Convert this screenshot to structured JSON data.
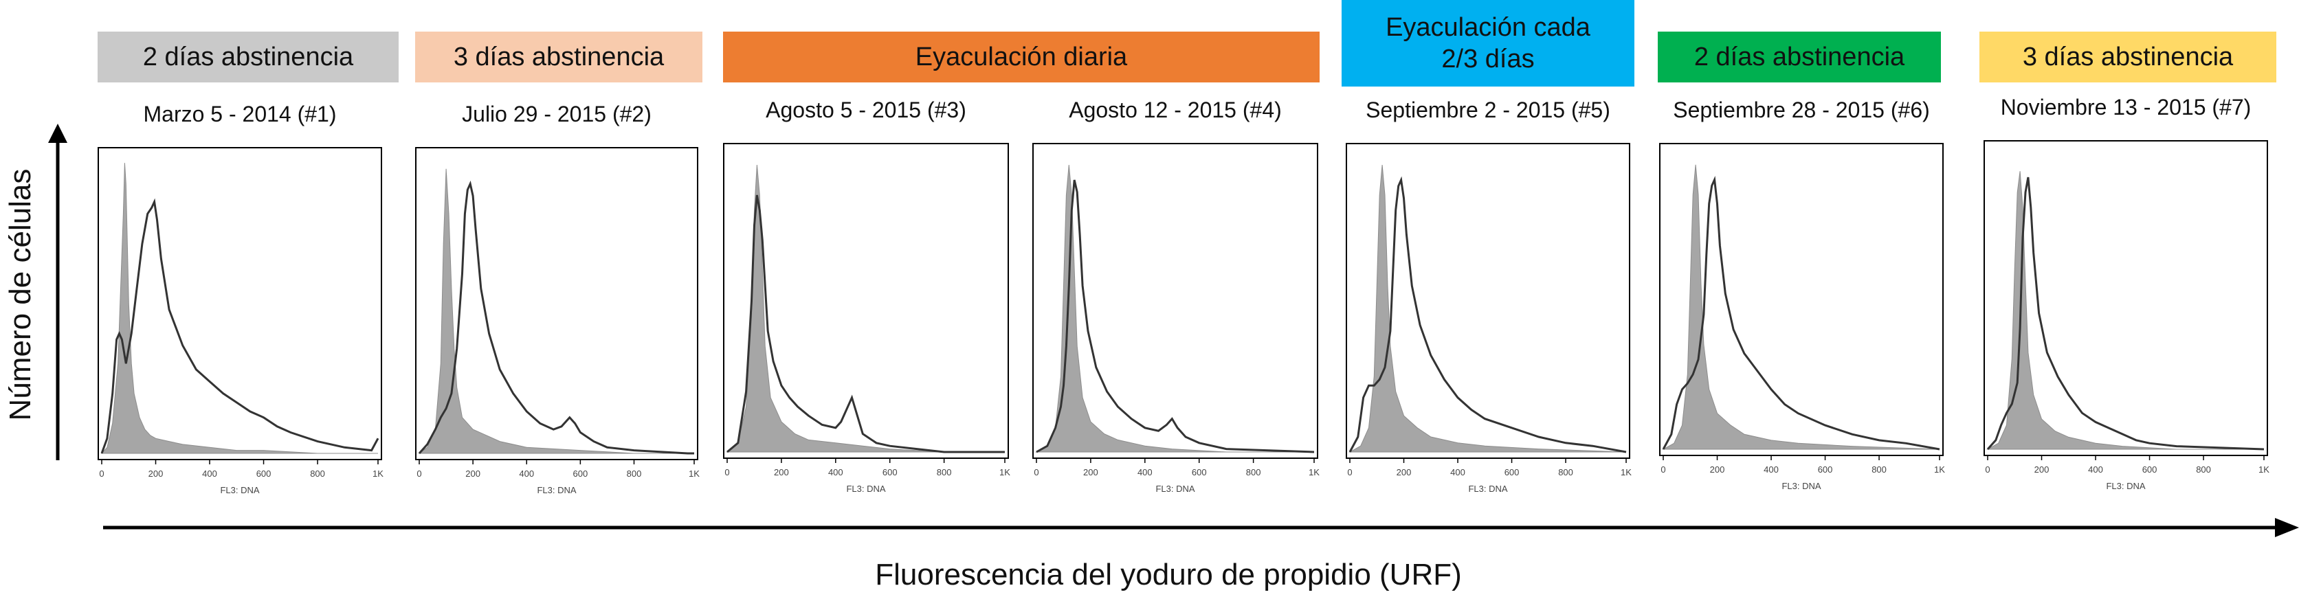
{
  "y_axis_label": "Número de células",
  "x_axis_label": "Fluorescencia del yoduro de propidio (URF)",
  "banners": [
    {
      "text": "2 días abstinencia",
      "color": "#c9c9c9"
    },
    {
      "text": "3 días abstinencia",
      "color": "#f8cbad"
    },
    {
      "text": "Eyaculación diaria",
      "color": "#ed7d31"
    },
    {
      "text": "Eyaculación cada\n2/3 días",
      "color": "#00b0f0"
    },
    {
      "text": "2 días abstinencia",
      "color": "#00b050"
    },
    {
      "text": "3 días abstinencia",
      "color": "#ffd966"
    }
  ],
  "chart_data": [
    {
      "type": "area",
      "title": "Marzo 5 - 2014 (#1)",
      "xlabel": "FL3: DNA",
      "xticks": [
        "0",
        "200",
        "400",
        "600",
        "800",
        "1K"
      ],
      "xlim": [
        0,
        1024
      ],
      "series": [
        {
          "style": "filled-gray",
          "x": [
            0,
            20,
            40,
            60,
            70,
            80,
            85,
            90,
            95,
            100,
            110,
            120,
            140,
            160,
            180,
            200,
            250,
            300,
            400,
            500,
            600,
            800,
            1000,
            1024
          ],
          "y": [
            0,
            2,
            10,
            30,
            55,
            80,
            97,
            90,
            70,
            50,
            30,
            20,
            12,
            8,
            6,
            5,
            4,
            3,
            2,
            1,
            1,
            0,
            0,
            0
          ]
        },
        {
          "style": "outline",
          "x": [
            0,
            20,
            40,
            55,
            65,
            75,
            90,
            110,
            130,
            150,
            170,
            185,
            195,
            205,
            220,
            250,
            300,
            350,
            400,
            450,
            500,
            550,
            600,
            650,
            700,
            800,
            900,
            1000,
            1024
          ],
          "y": [
            0,
            5,
            20,
            38,
            40,
            38,
            30,
            40,
            55,
            70,
            80,
            82,
            84,
            78,
            65,
            48,
            36,
            28,
            24,
            20,
            17,
            14,
            12,
            9,
            7,
            4,
            2,
            1,
            5
          ]
        }
      ]
    },
    {
      "type": "area",
      "title": "Julio 29 - 2015 (#2)",
      "xlabel": "FL3: DNA",
      "xticks": [
        "0",
        "200",
        "400",
        "600",
        "800",
        "1K"
      ],
      "xlim": [
        0,
        1024
      ],
      "series": [
        {
          "style": "filled-gray",
          "x": [
            0,
            30,
            60,
            80,
            90,
            100,
            110,
            120,
            130,
            140,
            160,
            200,
            250,
            300,
            400,
            600,
            800,
            1024
          ],
          "y": [
            0,
            2,
            8,
            30,
            70,
            95,
            80,
            55,
            35,
            22,
            12,
            8,
            6,
            4,
            2,
            1,
            0,
            0
          ]
        },
        {
          "style": "outline",
          "x": [
            0,
            30,
            60,
            80,
            100,
            120,
            140,
            160,
            170,
            180,
            190,
            200,
            210,
            230,
            260,
            300,
            350,
            400,
            450,
            500,
            530,
            560,
            580,
            600,
            650,
            700,
            800,
            1000,
            1024
          ],
          "y": [
            0,
            3,
            8,
            12,
            15,
            20,
            35,
            60,
            80,
            88,
            90,
            86,
            75,
            55,
            40,
            28,
            20,
            14,
            10,
            8,
            9,
            12,
            10,
            7,
            4,
            2,
            1,
            0,
            0
          ]
        }
      ]
    },
    {
      "type": "area",
      "title": "Agosto 5 - 2015 (#3)",
      "xlabel": "FL3: DNA",
      "xticks": [
        "0",
        "200",
        "400",
        "600",
        "800",
        "1K"
      ],
      "xlim": [
        0,
        1024
      ],
      "series": [
        {
          "style": "filled-gray",
          "x": [
            0,
            40,
            70,
            90,
            100,
            110,
            120,
            130,
            140,
            160,
            200,
            250,
            300,
            400,
            500,
            600,
            800,
            1024
          ],
          "y": [
            0,
            3,
            15,
            45,
            80,
            95,
            85,
            60,
            35,
            18,
            10,
            6,
            4,
            3,
            2,
            1,
            0,
            0
          ]
        },
        {
          "style": "outline",
          "x": [
            0,
            40,
            70,
            90,
            100,
            110,
            120,
            130,
            140,
            150,
            170,
            200,
            230,
            260,
            300,
            350,
            400,
            420,
            440,
            460,
            480,
            500,
            550,
            600,
            700,
            800,
            1024
          ],
          "y": [
            0,
            3,
            20,
            50,
            75,
            85,
            80,
            70,
            55,
            40,
            30,
            22,
            18,
            15,
            12,
            9,
            8,
            10,
            14,
            18,
            12,
            6,
            3,
            2,
            1,
            0,
            0
          ]
        }
      ]
    },
    {
      "type": "area",
      "title": "Agosto 12 - 2015 (#4)",
      "xlabel": "FL3: DNA",
      "xticks": [
        "0",
        "200",
        "400",
        "600",
        "800",
        "1K"
      ],
      "xlim": [
        0,
        1024
      ],
      "series": [
        {
          "style": "filled-gray",
          "x": [
            0,
            40,
            70,
            90,
            100,
            110,
            120,
            130,
            140,
            150,
            170,
            200,
            250,
            300,
            400,
            500,
            700,
            1024
          ],
          "y": [
            0,
            2,
            8,
            25,
            55,
            85,
            95,
            85,
            60,
            35,
            18,
            10,
            6,
            4,
            2,
            1,
            0,
            0
          ]
        },
        {
          "style": "outline",
          "x": [
            0,
            40,
            70,
            90,
            100,
            110,
            120,
            130,
            140,
            150,
            160,
            170,
            190,
            220,
            260,
            300,
            350,
            400,
            450,
            480,
            500,
            520,
            550,
            600,
            700,
            1024
          ],
          "y": [
            0,
            2,
            8,
            15,
            22,
            35,
            55,
            80,
            90,
            86,
            72,
            55,
            40,
            28,
            20,
            15,
            11,
            8,
            7,
            9,
            11,
            8,
            5,
            3,
            1,
            0
          ]
        }
      ]
    },
    {
      "type": "area",
      "title": "Septiembre 2 - 2015 (#5)",
      "xlabel": "FL3: DNA",
      "xticks": [
        "0",
        "200",
        "400",
        "600",
        "800",
        "1K"
      ],
      "xlim": [
        0,
        1024
      ],
      "series": [
        {
          "style": "filled-gray",
          "x": [
            0,
            40,
            70,
            90,
            100,
            110,
            120,
            130,
            140,
            150,
            170,
            200,
            250,
            300,
            400,
            500,
            700,
            1024
          ],
          "y": [
            0,
            2,
            8,
            25,
            55,
            85,
            95,
            85,
            55,
            35,
            20,
            12,
            8,
            5,
            3,
            2,
            1,
            0
          ]
        },
        {
          "style": "outline",
          "x": [
            0,
            30,
            50,
            70,
            90,
            110,
            130,
            150,
            160,
            170,
            180,
            190,
            200,
            210,
            230,
            260,
            300,
            350,
            400,
            450,
            500,
            600,
            700,
            800,
            900,
            1024
          ],
          "y": [
            0,
            5,
            18,
            22,
            22,
            24,
            28,
            40,
            60,
            80,
            88,
            90,
            84,
            72,
            55,
            42,
            32,
            24,
            18,
            14,
            11,
            8,
            5,
            3,
            2,
            0
          ]
        }
      ]
    },
    {
      "type": "area",
      "title": "Septiembre 28 - 2015 (#6)",
      "xlabel": "FL3: DNA",
      "xticks": [
        "0",
        "200",
        "400",
        "600",
        "800",
        "1K"
      ],
      "xlim": [
        0,
        1024
      ],
      "series": [
        {
          "style": "filled-gray",
          "x": [
            0,
            40,
            70,
            90,
            100,
            110,
            120,
            130,
            140,
            150,
            170,
            200,
            250,
            300,
            400,
            500,
            700,
            1024
          ],
          "y": [
            0,
            2,
            8,
            25,
            55,
            85,
            95,
            85,
            55,
            35,
            20,
            12,
            8,
            5,
            3,
            2,
            1,
            0
          ]
        },
        {
          "style": "outline",
          "x": [
            0,
            30,
            50,
            70,
            90,
            110,
            130,
            150,
            160,
            170,
            180,
            190,
            200,
            210,
            230,
            260,
            300,
            350,
            400,
            450,
            500,
            600,
            700,
            800,
            900,
            1024
          ],
          "y": [
            0,
            5,
            15,
            20,
            22,
            25,
            30,
            45,
            65,
            82,
            88,
            90,
            82,
            68,
            52,
            40,
            32,
            26,
            20,
            15,
            12,
            8,
            5,
            3,
            2,
            0
          ]
        }
      ]
    },
    {
      "type": "area",
      "title": "Noviembre 13 - 2015 (#7)",
      "xlabel": "FL3: DNA",
      "xticks": [
        "0",
        "200",
        "400",
        "600",
        "800",
        "1K"
      ],
      "xlim": [
        0,
        1024
      ],
      "series": [
        {
          "style": "filled-gray",
          "x": [
            0,
            40,
            70,
            90,
            100,
            110,
            120,
            130,
            140,
            150,
            170,
            200,
            250,
            300,
            400,
            500,
            700,
            1024
          ],
          "y": [
            0,
            2,
            8,
            30,
            60,
            85,
            92,
            80,
            55,
            32,
            18,
            10,
            6,
            4,
            2,
            1,
            0,
            0
          ]
        },
        {
          "style": "outline",
          "x": [
            0,
            30,
            50,
            70,
            90,
            110,
            120,
            130,
            140,
            150,
            160,
            170,
            190,
            220,
            260,
            300,
            350,
            400,
            450,
            500,
            550,
            600,
            700,
            1024
          ],
          "y": [
            0,
            3,
            8,
            12,
            15,
            22,
            40,
            70,
            85,
            90,
            80,
            65,
            45,
            32,
            24,
            18,
            12,
            9,
            7,
            5,
            3,
            2,
            1,
            0
          ]
        }
      ]
    }
  ]
}
